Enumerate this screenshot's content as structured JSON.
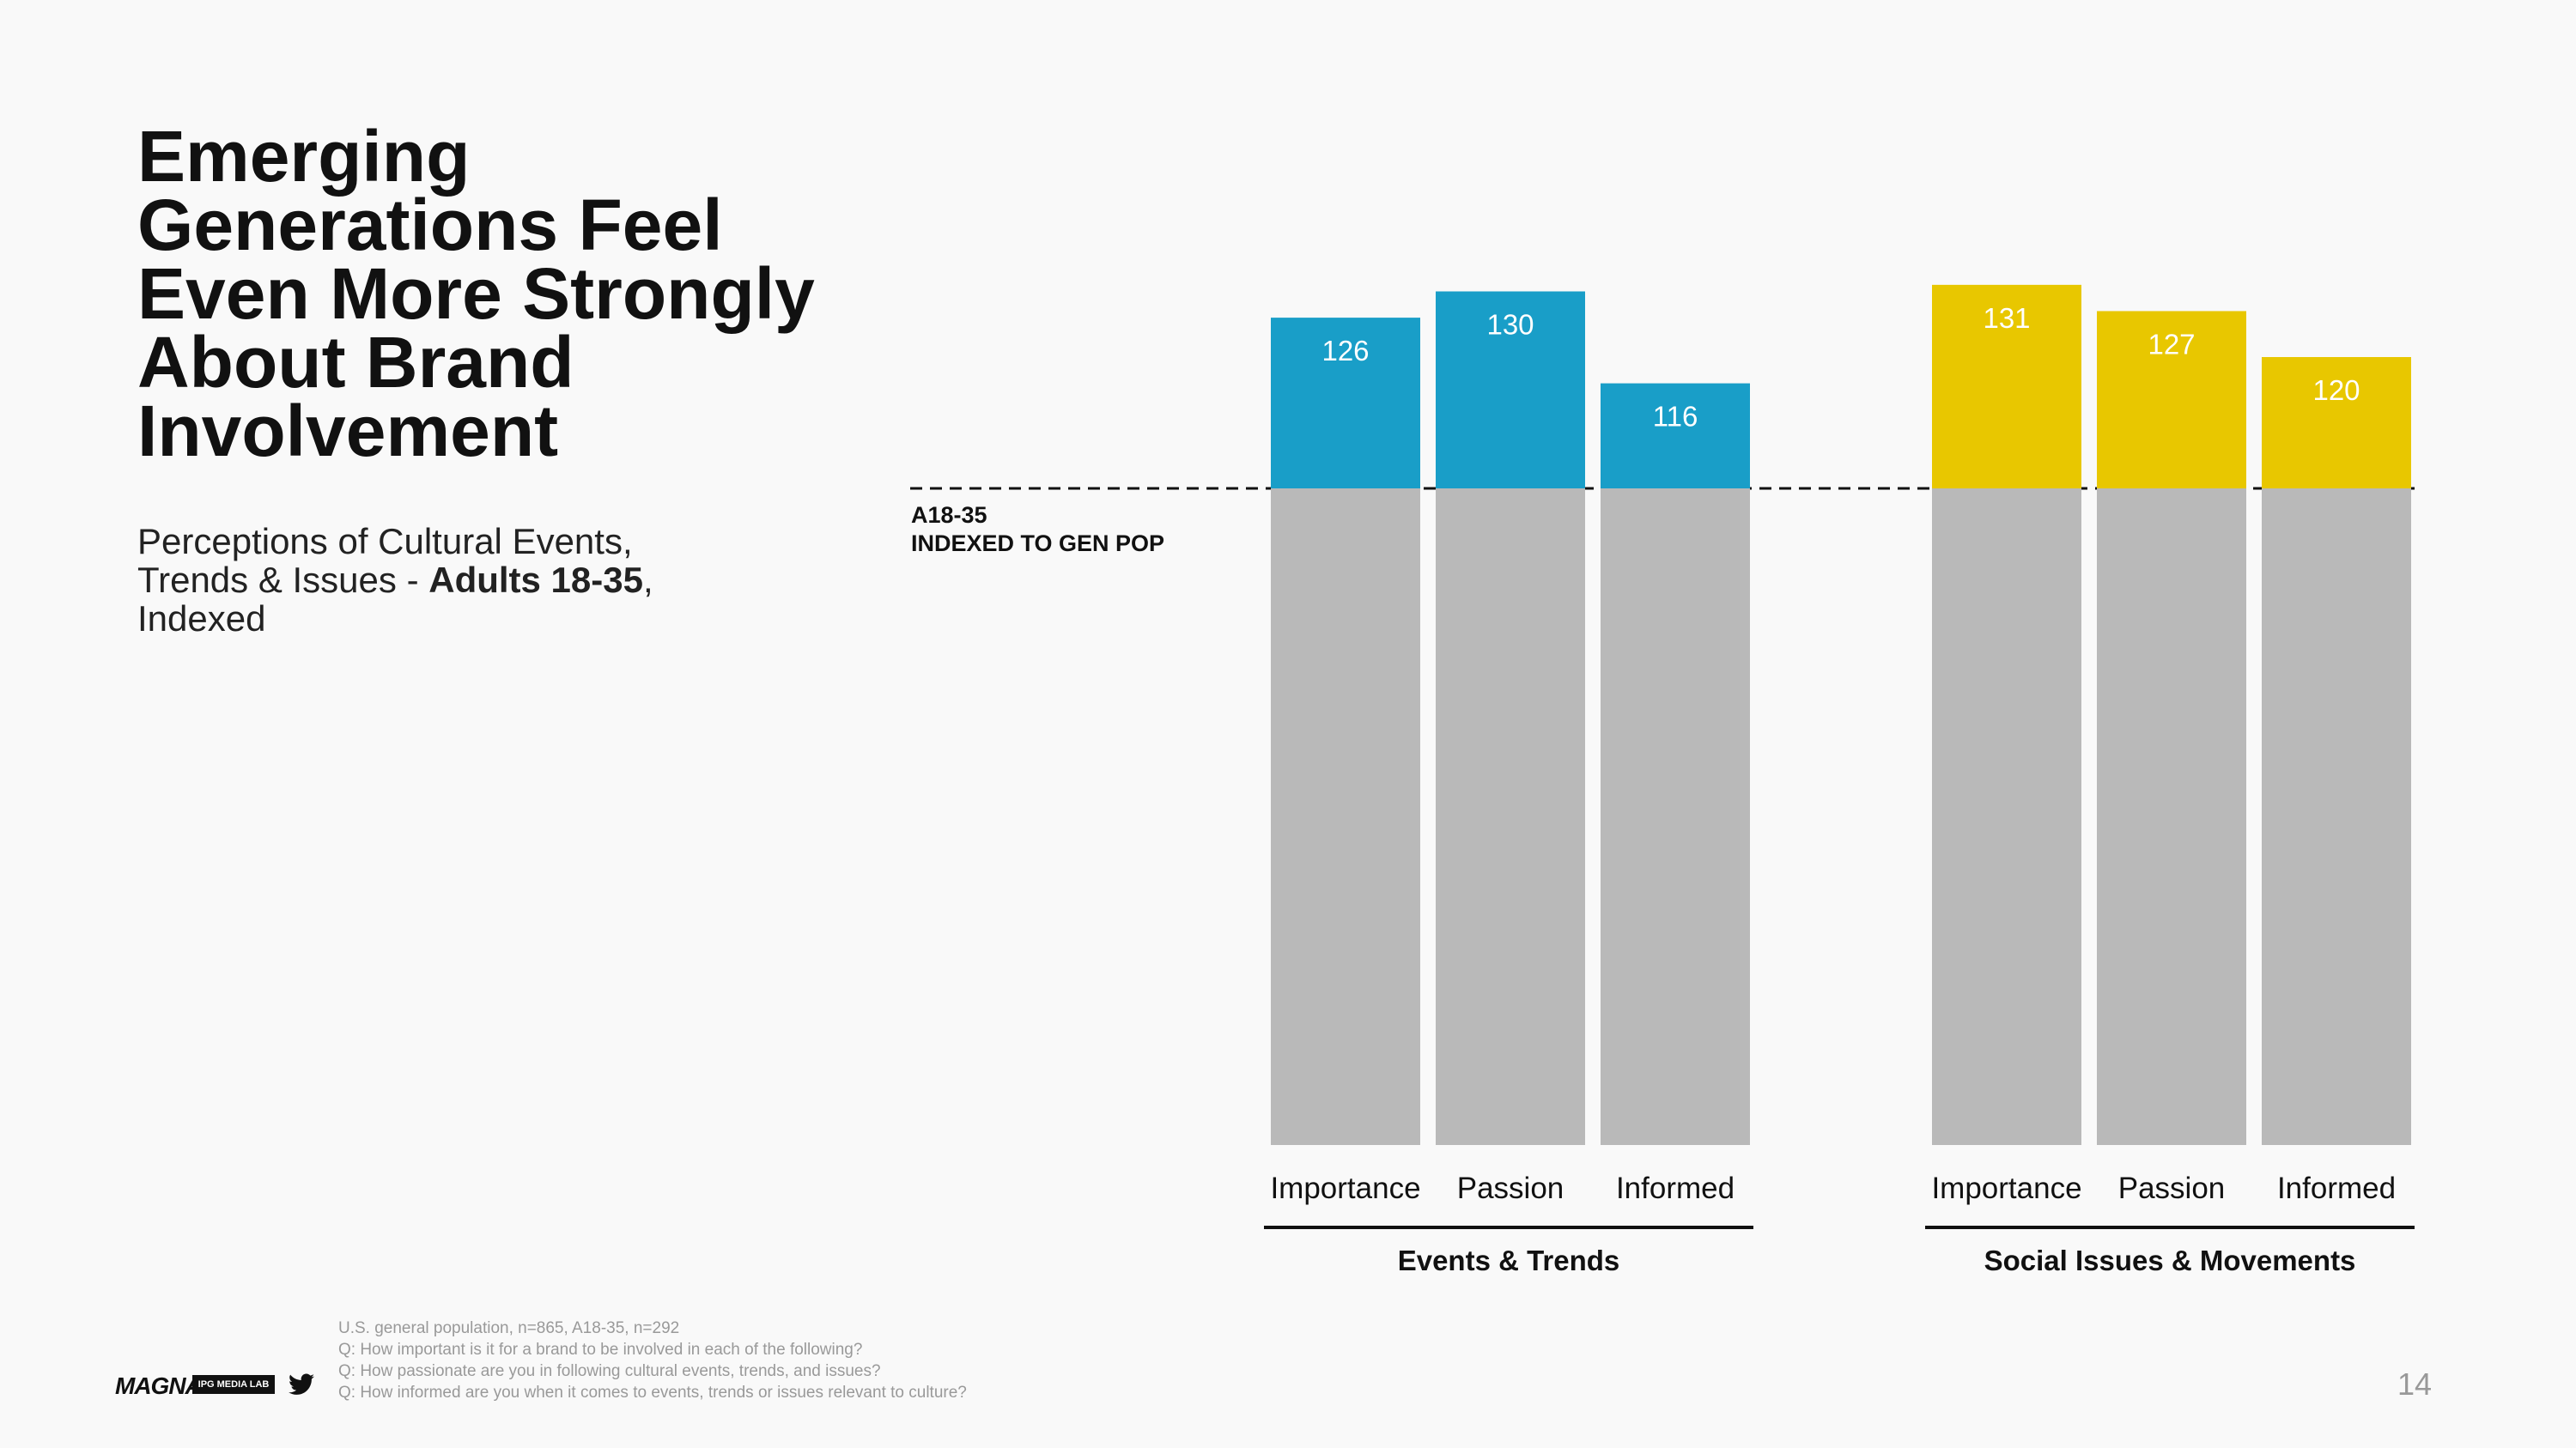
{
  "slide": {
    "title": "Emerging Generations Feel Even More Strongly About Brand Involvement",
    "subtitle_pre": "Perceptions of Cultural Events, Trends & Issues - ",
    "subtitle_bold": "Adults 18-35",
    "subtitle_post": ", Indexed",
    "page_number": "14",
    "logo_text": "MAGNA",
    "badge_text": "IPG MEDIA LAB",
    "footnotes": [
      "U.S. general population, n=865, A18-35, n=292",
      "Q: How important is it for a brand to be involved in each of the following?",
      "Q: How passionate are you in following cultural events, trends, and issues?",
      "Q: How informed are you when it comes to events, trends or issues relevant to culture?"
    ]
  },
  "chart_data": {
    "type": "bar",
    "baseline": 100,
    "baseline_label_line1": "A18-35",
    "baseline_label_line2": "INDEXED TO GEN POP",
    "categories": [
      "Importance",
      "Passion",
      "Informed"
    ],
    "groups": [
      {
        "name": "Events & Trends",
        "color": "#199ec8",
        "values": [
          126,
          130,
          116
        ]
      },
      {
        "name": "Social Issues & Movements",
        "color": "#e8c700",
        "values": [
          131,
          127,
          120
        ]
      }
    ],
    "base_color": "#b9b9b9"
  }
}
